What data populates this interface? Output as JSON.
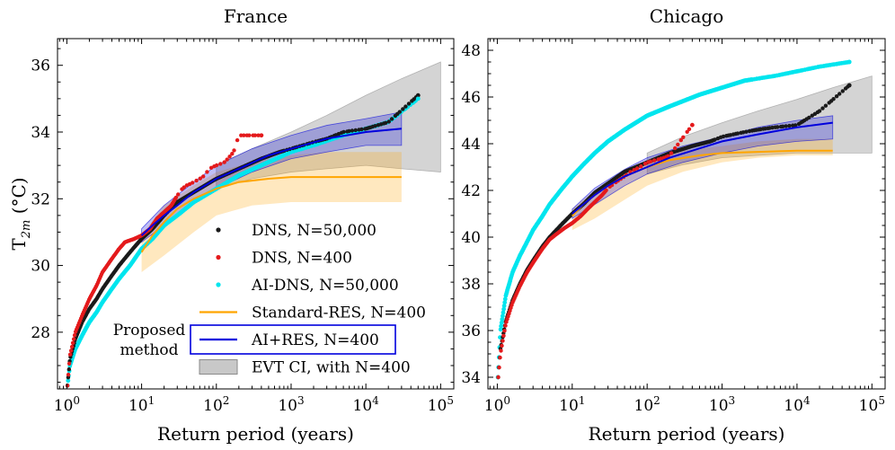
{
  "chart_data": [
    {
      "type": "scatter",
      "title": "France",
      "xlabel": "Return period (years)",
      "ylabel": "T2m (°C)",
      "ylabel_main": "T",
      "ylabel_sub": "2m",
      "ylabel_unit": "(°C)",
      "xscale": "log",
      "xlim": [
        0.75,
        150000
      ],
      "ylim": [
        26.3,
        36.8
      ],
      "xticks": [
        1,
        10,
        100,
        1000,
        10000,
        100000
      ],
      "xtick_labels": [
        "10^0",
        "10^1",
        "10^2",
        "10^3",
        "10^4",
        "10^5"
      ],
      "yticks": [
        28,
        30,
        32,
        34,
        36
      ],
      "ytick_labels": [
        "28",
        "30",
        "32",
        "34",
        "36"
      ],
      "legend_position": "lower-right",
      "legend": [
        {
          "label": "DNS, N=50,000",
          "kind": "point",
          "color": "#1a1a1a"
        },
        {
          "label": "DNS, N=400",
          "kind": "point",
          "color": "#e41a1c"
        },
        {
          "label": "AI-DNS, N=50,000",
          "kind": "point",
          "color": "#00e5ee"
        },
        {
          "label": "Standard-RES, N=400",
          "kind": "line",
          "color": "#ffa500"
        },
        {
          "label": "AI+RES, N=400",
          "kind": "line",
          "color": "#0000dd",
          "boxed": true
        },
        {
          "label": "EVT CI, with N=400",
          "kind": "patch",
          "color": "#b0b0b0"
        }
      ],
      "annotation": {
        "line1": "Proposed",
        "line2": "method",
        "color": "#0000dd"
      },
      "series": {
        "dns_50000": {
          "x": [
            1.02,
            1.1,
            1.3,
            1.6,
            2,
            2.5,
            3,
            4,
            5,
            7,
            10,
            14,
            20,
            30,
            50,
            100,
            200,
            400,
            700,
            1000,
            2000,
            3000,
            5000,
            10000,
            20000,
            50000
          ],
          "y": [
            26.4,
            27.2,
            27.8,
            28.3,
            28.7,
            29.0,
            29.3,
            29.7,
            30.0,
            30.4,
            30.8,
            31.1,
            31.5,
            31.9,
            32.2,
            32.6,
            32.9,
            33.2,
            33.4,
            33.5,
            33.7,
            33.8,
            34.0,
            34.1,
            34.3,
            35.1
          ]
        },
        "dns_400": {
          "x": [
            1.02,
            1.1,
            1.3,
            1.6,
            2,
            2.5,
            3,
            4,
            5,
            6,
            8,
            10,
            13,
            16,
            20,
            25,
            30,
            35,
            40,
            50,
            60,
            70,
            80,
            100,
            130,
            170,
            200,
            400
          ],
          "y": [
            26.4,
            27.3,
            28.0,
            28.5,
            29.0,
            29.4,
            29.8,
            30.2,
            30.5,
            30.7,
            30.8,
            30.9,
            31.1,
            31.4,
            31.6,
            31.8,
            32.1,
            32.3,
            32.4,
            32.5,
            32.6,
            32.7,
            32.9,
            33.0,
            33.1,
            33.4,
            33.9,
            33.9
          ]
        },
        "ai_dns_50000": {
          "x": [
            1.02,
            1.1,
            1.3,
            1.6,
            2,
            2.5,
            3,
            4,
            5,
            7,
            10,
            14,
            20,
            30,
            50,
            100,
            200,
            500,
            1000,
            2000,
            5000,
            10000,
            20000,
            50000
          ],
          "y": [
            26.4,
            27.0,
            27.5,
            27.9,
            28.3,
            28.6,
            28.9,
            29.3,
            29.6,
            30.0,
            30.5,
            30.8,
            31.2,
            31.5,
            31.9,
            32.3,
            32.7,
            33.1,
            33.4,
            33.6,
            33.9,
            34.1,
            34.3,
            35.0
          ]
        },
        "standard_res": {
          "x": [
            10,
            14,
            20,
            30,
            50,
            100,
            200,
            500,
            1000,
            3000,
            10000,
            30000
          ],
          "y": [
            30.4,
            30.9,
            31.3,
            31.7,
            32.0,
            32.3,
            32.5,
            32.6,
            32.65,
            32.65,
            32.65,
            32.65
          ]
        },
        "standard_res_band": {
          "x": [
            10,
            20,
            50,
            100,
            300,
            1000,
            3000,
            10000,
            30000
          ],
          "lower": [
            29.8,
            30.3,
            31.0,
            31.5,
            31.8,
            31.9,
            31.9,
            31.9,
            31.9
          ],
          "upper": [
            30.9,
            31.8,
            32.4,
            32.8,
            33.1,
            33.3,
            33.4,
            33.4,
            33.4
          ]
        },
        "ai_res": {
          "x": [
            10,
            14,
            20,
            30,
            50,
            100,
            200,
            500,
            1000,
            3000,
            10000,
            30000
          ],
          "y": [
            30.9,
            31.2,
            31.5,
            31.8,
            32.2,
            32.6,
            32.9,
            33.3,
            33.5,
            33.8,
            34.0,
            34.1
          ]
        },
        "ai_res_band": {
          "x": [
            10,
            20,
            50,
            100,
            300,
            1000,
            3000,
            10000,
            30000
          ],
          "lower": [
            30.7,
            31.2,
            31.9,
            32.3,
            32.8,
            33.2,
            33.4,
            33.6,
            33.6
          ],
          "upper": [
            31.1,
            31.8,
            32.5,
            33.0,
            33.5,
            33.9,
            34.2,
            34.4,
            34.6
          ]
        },
        "evt_band": {
          "x": [
            100,
            300,
            1000,
            3000,
            10000,
            30000,
            100000
          ],
          "lower": [
            32.3,
            32.6,
            32.8,
            32.9,
            33.0,
            32.9,
            32.8
          ],
          "upper": [
            33.0,
            33.5,
            34.0,
            34.5,
            35.1,
            35.6,
            36.1
          ]
        }
      }
    },
    {
      "type": "scatter",
      "title": "Chicago",
      "xlabel": "Return period (years)",
      "ylabel": "",
      "xscale": "log",
      "xlim": [
        0.75,
        150000
      ],
      "ylim": [
        33.5,
        48.5
      ],
      "xticks": [
        1,
        10,
        100,
        1000,
        10000,
        100000
      ],
      "xtick_labels": [
        "10^0",
        "10^1",
        "10^2",
        "10^3",
        "10^4",
        "10^5"
      ],
      "yticks": [
        34,
        36,
        38,
        40,
        42,
        44,
        46,
        48
      ],
      "ytick_labels": [
        "34",
        "36",
        "38",
        "40",
        "42",
        "44",
        "46",
        "48"
      ],
      "series": {
        "dns_50000": {
          "x": [
            1.03,
            1.1,
            1.3,
            1.6,
            2,
            2.5,
            3,
            4,
            5,
            7,
            10,
            14,
            20,
            30,
            50,
            100,
            200,
            400,
            700,
            1000,
            2000,
            3000,
            5000,
            10000,
            20000,
            50000
          ],
          "y": [
            34.0,
            35.2,
            36.4,
            37.3,
            38.0,
            38.6,
            39.0,
            39.6,
            40.0,
            40.5,
            41.0,
            41.4,
            41.9,
            42.3,
            42.8,
            43.2,
            43.6,
            43.9,
            44.1,
            44.3,
            44.5,
            44.6,
            44.7,
            44.8,
            45.4,
            46.5
          ]
        },
        "dns_400": {
          "x": [
            1.03,
            1.1,
            1.3,
            1.6,
            2,
            2.5,
            3,
            4,
            5,
            6,
            8,
            10,
            13,
            16,
            20,
            25,
            30,
            40,
            50,
            60,
            80,
            100,
            130,
            170,
            200,
            400
          ],
          "y": [
            34.0,
            35.0,
            36.3,
            37.2,
            37.9,
            38.5,
            38.9,
            39.5,
            39.9,
            40.1,
            40.4,
            40.6,
            40.9,
            41.2,
            41.5,
            41.8,
            42.1,
            42.4,
            42.6,
            42.8,
            43.0,
            43.2,
            43.3,
            43.4,
            43.5,
            44.8
          ]
        },
        "ai_dns_50000": {
          "x": [
            1.02,
            1.1,
            1.3,
            1.6,
            2,
            2.5,
            3,
            4,
            5,
            7,
            10,
            14,
            20,
            30,
            50,
            100,
            200,
            500,
            1000,
            2000,
            5000,
            10000,
            20000,
            50000
          ],
          "y": [
            34.0,
            36.0,
            37.5,
            38.5,
            39.2,
            39.8,
            40.3,
            40.9,
            41.4,
            42.0,
            42.6,
            43.1,
            43.6,
            44.1,
            44.6,
            45.2,
            45.6,
            46.1,
            46.4,
            46.7,
            46.9,
            47.1,
            47.3,
            47.5
          ]
        },
        "standard_res": {
          "x": [
            10,
            14,
            20,
            30,
            50,
            100,
            200,
            500,
            1000,
            3000,
            10000,
            30000
          ],
          "y": [
            40.9,
            41.4,
            41.8,
            42.2,
            42.6,
            43.0,
            43.3,
            43.5,
            43.6,
            43.65,
            43.7,
            43.7
          ]
        },
        "standard_res_band": {
          "x": [
            10,
            20,
            50,
            100,
            300,
            1000,
            3000,
            10000,
            30000
          ],
          "lower": [
            40.3,
            40.8,
            41.6,
            42.2,
            42.8,
            43.2,
            43.4,
            43.5,
            43.5
          ],
          "upper": [
            41.2,
            42.0,
            42.8,
            43.3,
            43.7,
            43.9,
            44.1,
            44.2,
            44.2
          ]
        },
        "ai_res": {
          "x": [
            10,
            14,
            20,
            30,
            50,
            100,
            200,
            500,
            1000,
            3000,
            10000,
            30000
          ],
          "y": [
            41.0,
            41.4,
            41.8,
            42.2,
            42.6,
            43.0,
            43.4,
            43.8,
            44.1,
            44.4,
            44.7,
            44.9
          ]
        },
        "ai_res_band": {
          "x": [
            10,
            20,
            50,
            100,
            300,
            1000,
            3000,
            10000,
            30000
          ],
          "lower": [
            40.8,
            41.4,
            42.2,
            42.7,
            43.2,
            43.6,
            43.9,
            44.1,
            44.2
          ],
          "upper": [
            41.2,
            42.1,
            42.9,
            43.4,
            43.9,
            44.3,
            44.7,
            45.0,
            45.2
          ]
        },
        "evt_band": {
          "x": [
            100,
            300,
            1000,
            3000,
            10000,
            30000,
            100000
          ],
          "lower": [
            42.7,
            43.1,
            43.4,
            43.5,
            43.6,
            43.6,
            43.6
          ],
          "upper": [
            43.6,
            44.3,
            44.9,
            45.4,
            45.9,
            46.4,
            46.9
          ]
        }
      }
    }
  ]
}
